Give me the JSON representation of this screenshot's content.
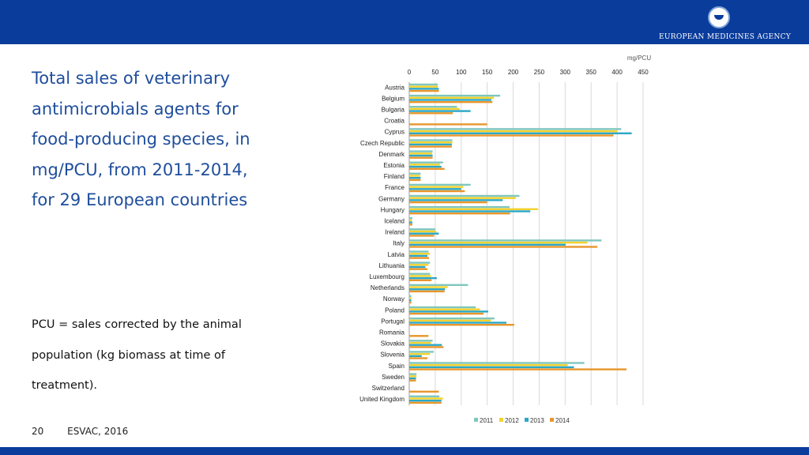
{
  "header": {
    "logo_text": "EUROPEAN MEDICINES AGENCY"
  },
  "slide": {
    "title": "Total sales of veterinary antimicrobials agents for food-producing species, in mg/PCU, from 2011-2014, for 29 European countries",
    "note": "PCU = sales corrected by the animal population (kg biomass at time of treatment).",
    "page_number": "20",
    "source": "ESVAC, 2016"
  },
  "chart_data": {
    "type": "bar",
    "orientation": "horizontal",
    "unit_label": "mg/PCU",
    "xlim": [
      0,
      450
    ],
    "ticks": [
      0,
      50,
      100,
      150,
      200,
      250,
      300,
      350,
      400,
      450
    ],
    "grid": true,
    "legend_position": "bottom",
    "categories": [
      "Austria",
      "Belgium",
      "Bulgaria",
      "Croatia",
      "Cyprus",
      "Czech Republic",
      "Denmark",
      "Estonia",
      "Finland",
      "France",
      "Germany",
      "Hungary",
      "Iceland",
      "Ireland",
      "Italy",
      "Latvia",
      "Lithuania",
      "Luxembourg",
      "Netherlands",
      "Norway",
      "Poland",
      "Portugal",
      "Romania",
      "Slovakia",
      "Slovenia",
      "Spain",
      "Sweden",
      "Switzerland",
      "United Kingdom"
    ],
    "series": [
      {
        "name": "2011",
        "color": "#7fc6be",
        "values": [
          55,
          175,
          92,
          null,
          408,
          83,
          45,
          65,
          22,
          118,
          212,
          193,
          6,
          50,
          370,
          37,
          40,
          40,
          113,
          4,
          128,
          164,
          null,
          45,
          47,
          337,
          14,
          null,
          58
        ]
      },
      {
        "name": "2012",
        "color": "#f2d22e",
        "values": [
          55,
          163,
          97,
          null,
          400,
          83,
          44,
          59,
          21,
          104,
          205,
          248,
          5,
          52,
          343,
          40,
          37,
          42,
          74,
          4,
          136,
          157,
          null,
          42,
          40,
          305,
          14,
          null,
          65
        ]
      },
      {
        "name": "2013",
        "color": "#2ba7c6",
        "values": [
          57,
          158,
          118,
          null,
          428,
          82,
          45,
          62,
          22,
          100,
          180,
          233,
          6,
          57,
          301,
          35,
          31,
          53,
          69,
          4,
          152,
          187,
          null,
          63,
          24,
          317,
          13,
          null,
          62
        ]
      },
      {
        "name": "2014",
        "color": "#e8962c",
        "values": [
          57,
          160,
          84,
          150,
          393,
          82,
          45,
          68,
          22,
          107,
          150,
          194,
          6,
          48,
          362,
          38,
          35,
          43,
          68,
          4,
          143,
          202,
          37,
          66,
          35,
          418,
          13,
          57,
          62
        ]
      }
    ]
  }
}
